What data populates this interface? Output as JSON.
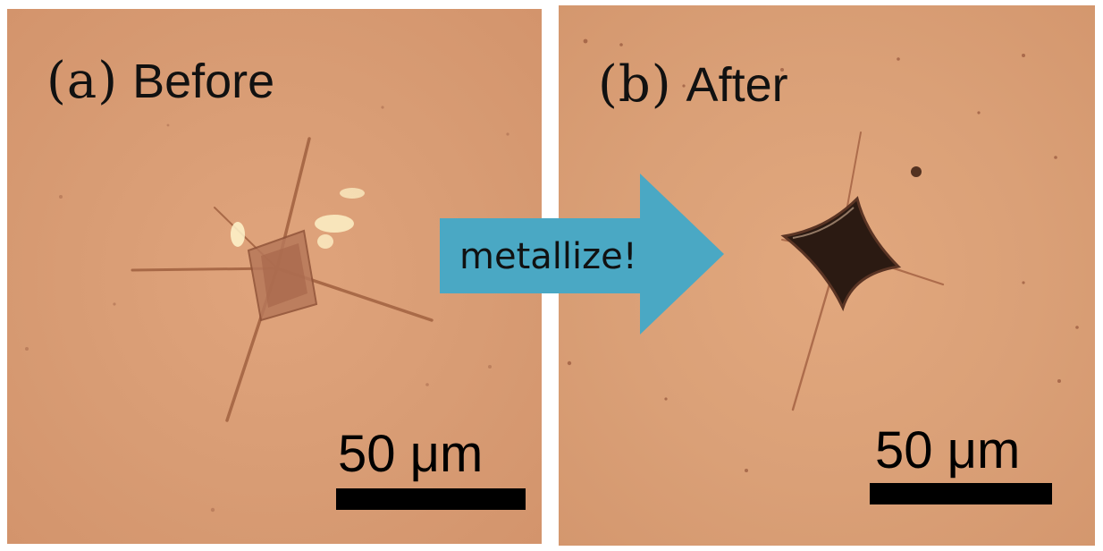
{
  "panels": [
    {
      "label_letter": "(a)",
      "label_word": "Before",
      "scale_label": "50 μm",
      "crystal_state": "translucent"
    },
    {
      "label_letter": "(b)",
      "label_word": "After",
      "scale_label": "50 μm",
      "crystal_state": "opaque-dark"
    }
  ],
  "arrow": {
    "label": "metallize!",
    "color": "#4aa8c4"
  },
  "colors": {
    "background_tint": "#d99a72",
    "scale_bar": "#000000"
  }
}
